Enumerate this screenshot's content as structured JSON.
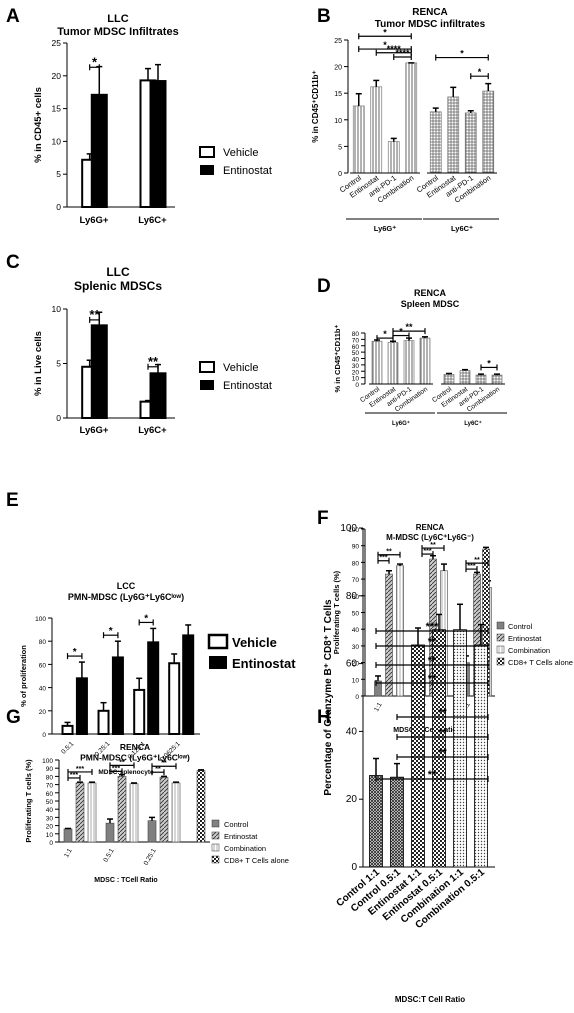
{
  "chart_data": [
    {
      "type": "bar",
      "panel": "A",
      "title": "LLC",
      "subtitle": "Tumor MDSC Infiltrates",
      "ylabel": "% in CD45+ cells",
      "xlabel": "",
      "ylim": [
        0,
        25
      ],
      "yticks": [
        0,
        5,
        10,
        15,
        20,
        25
      ],
      "categories": [
        "Ly6G+",
        "Ly6C+"
      ],
      "series": [
        {
          "name": "Vehicle",
          "values": [
            7.2,
            19.3
          ],
          "errors": [
            0.9,
            1.8
          ],
          "fill": "#ffffff"
        },
        {
          "name": "Entinostat",
          "values": [
            17.1,
            19.2
          ],
          "errors": [
            4.3,
            2.5
          ],
          "fill": "#000000"
        }
      ],
      "significance": [
        {
          "group": 0,
          "from": 0,
          "to": 1,
          "label": "*"
        }
      ]
    },
    {
      "type": "bar",
      "panel": "B",
      "title": "RENCA",
      "subtitle": "Tumor MDSC infiltrates",
      "ylabel": "% in CD45⁺CD11b⁺",
      "ylim": [
        0,
        25
      ],
      "yticks": [
        0,
        5,
        10,
        15,
        20,
        25
      ],
      "groups": [
        "Ly6G⁺",
        "Ly6C⁺"
      ],
      "categories": [
        "Control",
        "Entinostat",
        "anti-PD-1",
        "Combination"
      ],
      "series": [
        {
          "name": "Ly6G⁺",
          "values": [
            12.6,
            16.2,
            5.9,
            20.7
          ],
          "errors": [
            2.3,
            1.2,
            0.6,
            0.0
          ]
        },
        {
          "name": "Ly6C⁺",
          "values": [
            11.5,
            14.3,
            11.3,
            15.4
          ],
          "errors": [
            0.7,
            1.8,
            0.4,
            1.4
          ]
        }
      ],
      "significance": [
        {
          "group": 0,
          "from": 2,
          "to": 3,
          "label": "****"
        },
        {
          "group": 0,
          "from": 1,
          "to": 3,
          "label": "****"
        },
        {
          "group": 0,
          "from": 0,
          "to": 3,
          "label": "*"
        },
        {
          "group": 0,
          "from": 0,
          "to": 3,
          "label": "*"
        },
        {
          "group": 1,
          "from": 2,
          "to": 3,
          "label": "*"
        },
        {
          "group": 1,
          "from": 0,
          "to": 3,
          "label": "*"
        }
      ]
    },
    {
      "type": "bar",
      "panel": "C",
      "title": "LLC",
      "subtitle": "Splenic  MDSCs",
      "ylabel": "% in Live cells",
      "ylim": [
        0,
        10
      ],
      "yticks": [
        0,
        5,
        10
      ],
      "categories": [
        "Ly6G+",
        "Ly6C+"
      ],
      "series": [
        {
          "name": "Vehicle",
          "values": [
            4.7,
            1.5
          ],
          "errors": [
            0.6,
            0.1
          ],
          "fill": "#ffffff"
        },
        {
          "name": "Entinostat",
          "values": [
            8.5,
            4.1
          ],
          "errors": [
            1.2,
            0.8
          ],
          "fill": "#000000"
        }
      ],
      "significance": [
        {
          "group": 0,
          "from": 0,
          "to": 1,
          "label": "**"
        },
        {
          "group": 1,
          "from": 0,
          "to": 1,
          "label": "**"
        }
      ]
    },
    {
      "type": "bar",
      "panel": "D",
      "title": "RENCA",
      "subtitle": "Spleen MDSC",
      "ylabel": "% in CD45⁺CD11b⁺",
      "ylim": [
        0,
        80
      ],
      "yticks": [
        0,
        10,
        20,
        30,
        40,
        50,
        60,
        70,
        80
      ],
      "groups": [
        "Ly6G⁺",
        "Ly6C⁺"
      ],
      "categories": [
        "Control",
        "Entinostat",
        "anti-PD-1",
        "Combination"
      ],
      "series": [
        {
          "name": "Ly6G⁺",
          "values": [
            67,
            65,
            68,
            72
          ],
          "errors": [
            2,
            2,
            4,
            2
          ]
        },
        {
          "name": "Ly6C⁺",
          "values": [
            15,
            21,
            14,
            14
          ],
          "errors": [
            1.5,
            1.5,
            1.5,
            1.5
          ]
        }
      ],
      "significance": [
        {
          "group": 0,
          "from": 0,
          "to": 1,
          "label": "*"
        },
        {
          "group": 0,
          "from": 1,
          "to": 2,
          "label": "*"
        },
        {
          "group": 0,
          "from": 1,
          "to": 3,
          "label": "**"
        },
        {
          "group": 1,
          "from": 2,
          "to": 3,
          "label": "*"
        }
      ]
    },
    {
      "type": "bar",
      "panel": "E",
      "title": "LCC",
      "subtitle": "PMN-MDSC (Ly6G⁺Ly6Cˡᵒʷ)",
      "ylabel": "% of proliferation",
      "xlabel": "MDSC:splenocyte",
      "ylim": [
        0,
        100
      ],
      "yticks": [
        0,
        20,
        40,
        60,
        80,
        100
      ],
      "categories": [
        "0.5:1",
        "0.25:1",
        "0.125:1",
        "0.0625:1"
      ],
      "series": [
        {
          "name": "Vehicle",
          "values": [
            7,
            20,
            38,
            61
          ],
          "errors": [
            3,
            7,
            10,
            8
          ],
          "fill": "#ffffff"
        },
        {
          "name": "Entinostat",
          "values": [
            48,
            66,
            79,
            85
          ],
          "errors": [
            14,
            14,
            12,
            9
          ],
          "fill": "#000000"
        }
      ],
      "significance": [
        {
          "group": 0,
          "from": 0,
          "to": 1,
          "label": "*"
        },
        {
          "group": 1,
          "from": 0,
          "to": 1,
          "label": "*"
        },
        {
          "group": 2,
          "from": 0,
          "to": 1,
          "label": "*"
        }
      ]
    },
    {
      "type": "bar",
      "panel": "F",
      "title": "RENCA",
      "subtitle": "M-MDSC (Ly6C⁺Ly6G⁻)",
      "ylabel": "Proliferating T cells (%)",
      "xlabel": "MDSC : TCell  Ratio",
      "ylim": [
        0,
        100
      ],
      "yticks": [
        0,
        10,
        20,
        30,
        40,
        50,
        60,
        70,
        80,
        90,
        100
      ],
      "categories": [
        "1:1",
        "0.5:1",
        "0.25:1"
      ],
      "series": [
        {
          "name": "Control",
          "values": [
            9,
            16,
            20
          ],
          "errors": [
            3,
            6,
            4
          ]
        },
        {
          "name": "Entinostat",
          "values": [
            73,
            82,
            73
          ],
          "errors": [
            2,
            2,
            1
          ]
        },
        {
          "name": "Combination",
          "values": [
            78,
            75,
            65
          ],
          "errors": [
            1,
            4,
            4
          ]
        },
        {
          "name": "CD8+ T Cells alone",
          "values": [
            88,
            null,
            null
          ],
          "errors": [
            1,
            null,
            null
          ]
        }
      ],
      "significance": [
        {
          "group": 0,
          "from": 0,
          "to": 1,
          "label": "***"
        },
        {
          "group": 0,
          "from": 0,
          "to": 2,
          "label": "**"
        },
        {
          "group": 1,
          "from": 0,
          "to": 1,
          "label": "***"
        },
        {
          "group": 1,
          "from": 0,
          "to": 2,
          "label": "**"
        },
        {
          "group": 2,
          "from": 0,
          "to": 1,
          "label": "***"
        },
        {
          "group": 2,
          "from": 0,
          "to": 2,
          "label": "**"
        }
      ]
    },
    {
      "type": "bar",
      "panel": "G",
      "title": "RENCA",
      "subtitle": "PMN-MDSC (Ly6G⁺Ly6Cˡᵒʷ)",
      "ylabel": "Proliferating T cells (%)",
      "xlabel": "MDSC : TCell  Ratio",
      "ylim": [
        0,
        100
      ],
      "yticks": [
        0,
        10,
        20,
        30,
        40,
        50,
        60,
        70,
        80,
        90,
        100
      ],
      "categories": [
        "1:1",
        "0.5:1",
        "0.25:1"
      ],
      "series": [
        {
          "name": "Control",
          "values": [
            16,
            23,
            26
          ],
          "errors": [
            0.5,
            5,
            4
          ]
        },
        {
          "name": "Entinostat",
          "values": [
            72,
            80,
            79
          ],
          "errors": [
            1,
            2,
            1
          ]
        },
        {
          "name": "Combination",
          "values": [
            72,
            71,
            72
          ],
          "errors": [
            1,
            1,
            1
          ]
        },
        {
          "name": "CD8+ T Cells alone",
          "values": [
            87,
            null,
            null
          ],
          "errors": [
            1,
            null,
            null
          ]
        }
      ],
      "significance": [
        {
          "group": 0,
          "from": 0,
          "to": 1,
          "label": "***"
        },
        {
          "group": 0,
          "from": 0,
          "to": 2,
          "label": "***"
        },
        {
          "group": 1,
          "from": 0,
          "to": 1,
          "label": "***"
        },
        {
          "group": 1,
          "from": 0,
          "to": 2,
          "label": "**"
        },
        {
          "group": 2,
          "from": 0,
          "to": 1,
          "label": "**"
        },
        {
          "group": 2,
          "from": 0,
          "to": 2,
          "label": "**"
        }
      ]
    },
    {
      "type": "bar",
      "panel": "H",
      "ylabel": "Percentage of  Granzyme B⁺ CD8⁺ T Cells",
      "xlabel": "MDSC:T Cell Ratio",
      "ylim": [
        0,
        100
      ],
      "yticks": [
        0,
        20,
        40,
        60,
        80,
        100
      ],
      "categories": [
        "Control 1:1",
        "Control 0.5:1",
        "Entinostat 1:1",
        "Entinostat 0.5:1",
        "Combination 1:1",
        "Combination 0.5:1"
      ],
      "values": [
        27,
        26.5,
        65.5,
        70,
        70,
        65.5
      ],
      "errors": [
        5,
        4,
        5,
        4.5,
        7.5,
        6
      ],
      "significance": [
        {
          "from": 0,
          "to": 2,
          "label": "**"
        },
        {
          "from": 1,
          "to": 2,
          "label": "**"
        },
        {
          "from": 1,
          "to": 3,
          "label": "**"
        },
        {
          "from": 1,
          "to": 4,
          "label": "**"
        },
        {
          "from": 0,
          "to": 4,
          "label": "**"
        },
        {
          "from": 0,
          "to": 5,
          "label": "**"
        },
        {
          "from": 0,
          "to": 5,
          "label": "**"
        },
        {
          "from": 0,
          "to": 5,
          "label": "***"
        }
      ]
    }
  ],
  "panels": {
    "A": "A",
    "B": "B",
    "C": "C",
    "D": "D",
    "E": "E",
    "F": "F",
    "G": "G",
    "H": "H"
  },
  "legends": {
    "vehicle": "Vehicle",
    "entinostat": "Entinostat",
    "control": "Control",
    "combination": "Combination",
    "cd8": "CD8+ T Cells alone"
  }
}
